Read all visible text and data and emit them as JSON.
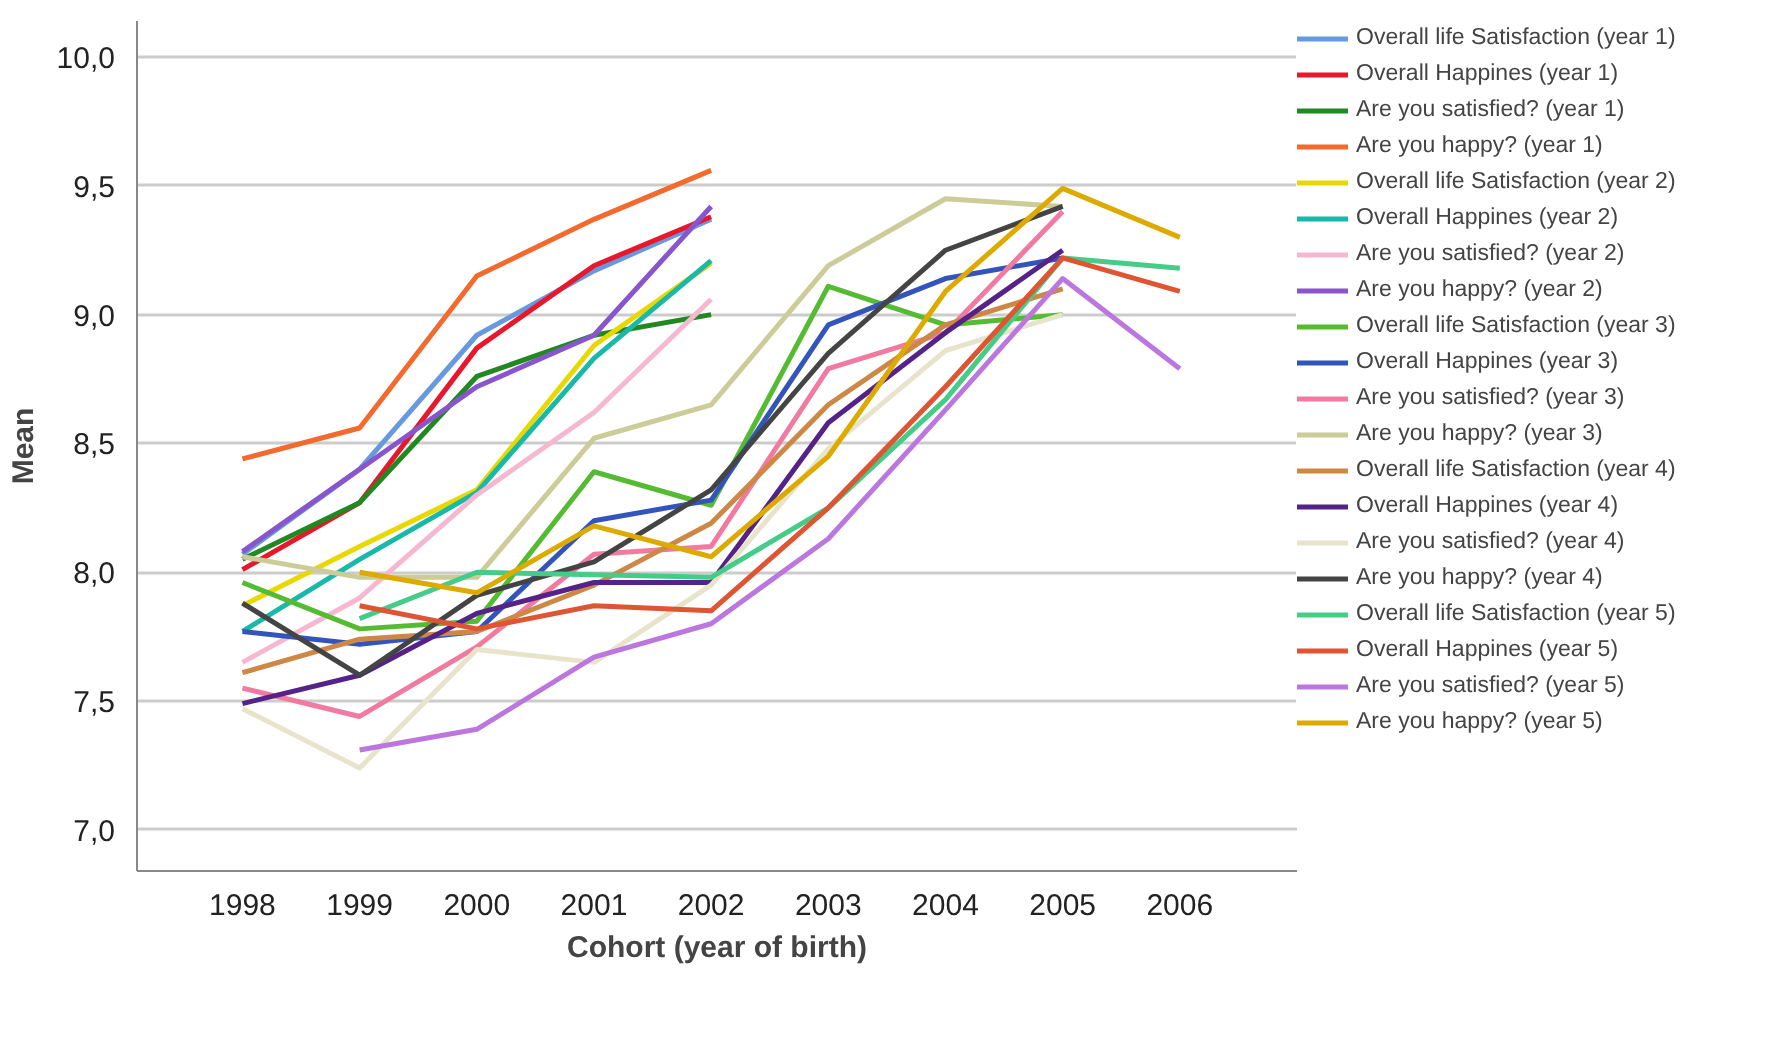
{
  "chart_data": {
    "type": "line",
    "xlabel": "Cohort (year of birth)",
    "ylabel": "Mean",
    "xlim": [
      1997.1,
      2007
    ],
    "xticks": [
      1998,
      1999,
      2000,
      2001,
      2002,
      2003,
      2004,
      2005,
      2006
    ],
    "ylim": [
      6.84,
      10.14
    ],
    "yticks": [
      {
        "value": 7.0,
        "label": "7,0"
      },
      {
        "value": 7.5,
        "label": "7,5"
      },
      {
        "value": 8.0,
        "label": "8,0"
      },
      {
        "value": 8.5,
        "label": "8,5"
      },
      {
        "value": 9.0,
        "label": "9,0"
      },
      {
        "value": 9.5,
        "label": "9,5"
      },
      {
        "value": 10.0,
        "label": "10,0"
      }
    ],
    "grid": "y",
    "legend": "right",
    "marker": "none",
    "line_style": "solid",
    "series": [
      {
        "name": "Overall life Satisfaction (year 1)",
        "color": "#6699dd",
        "x": [
          1998,
          1999,
          2000,
          2001,
          2002
        ],
        "values": [
          8.07,
          8.4,
          8.92,
          9.17,
          9.37
        ]
      },
      {
        "name": "Overall Happines (year 1)",
        "color": "#e8182c",
        "x": [
          1998,
          1999,
          2000,
          2001,
          2002
        ],
        "values": [
          8.01,
          8.27,
          8.87,
          9.19,
          9.38
        ]
      },
      {
        "name": "Are you satisfied? (year 1)",
        "color": "#228822",
        "x": [
          1998,
          1999,
          2000,
          2001,
          2002
        ],
        "values": [
          8.05,
          8.27,
          8.76,
          8.92,
          9.0
        ]
      },
      {
        "name": "Are you happy? (year 1)",
        "color": "#f26a2e",
        "x": [
          1998,
          1999,
          2000,
          2001,
          2002
        ],
        "values": [
          8.44,
          8.56,
          9.15,
          9.37,
          9.56
        ]
      },
      {
        "name": "Overall life Satisfaction (year 2)",
        "color": "#e8d800",
        "x": [
          1998,
          1999,
          2000,
          2001,
          2002
        ],
        "values": [
          7.87,
          8.1,
          8.32,
          8.88,
          9.2
        ]
      },
      {
        "name": "Overall Happines (year 2)",
        "color": "#1ab8a8",
        "x": [
          1998,
          1999,
          2000,
          2001,
          2002
        ],
        "values": [
          7.77,
          8.05,
          8.31,
          8.83,
          9.21
        ]
      },
      {
        "name": "Are you satisfied? (year 2)",
        "color": "#f5b8d0",
        "x": [
          1998,
          1999,
          2000,
          2001,
          2002
        ],
        "values": [
          7.65,
          7.9,
          8.3,
          8.62,
          9.06
        ]
      },
      {
        "name": "Are you happy? (year 2)",
        "color": "#8855cc",
        "x": [
          1998,
          1999,
          2000,
          2001,
          2002
        ],
        "values": [
          8.08,
          8.4,
          8.72,
          8.92,
          9.42
        ]
      },
      {
        "name": "Overall life Satisfaction (year 3)",
        "color": "#55bb33",
        "x": [
          1998,
          1999,
          2000,
          2001,
          2002,
          2003,
          2004,
          2005
        ],
        "values": [
          7.96,
          7.78,
          7.81,
          8.39,
          8.26,
          9.11,
          8.96,
          9.0
        ]
      },
      {
        "name": "Overall Happines (year 3)",
        "color": "#3355bb",
        "x": [
          1998,
          1999,
          2000,
          2001,
          2002,
          2003,
          2004,
          2005
        ],
        "values": [
          7.77,
          7.72,
          7.77,
          8.2,
          8.28,
          8.96,
          9.14,
          9.22
        ]
      },
      {
        "name": "Are you satisfied? (year 3)",
        "color": "#f07aa0",
        "x": [
          1998,
          1999,
          2000,
          2001,
          2002,
          2003,
          2004,
          2005
        ],
        "values": [
          7.55,
          7.44,
          7.71,
          8.07,
          8.1,
          8.79,
          8.93,
          9.4
        ]
      },
      {
        "name": "Are you happy? (year 3)",
        "color": "#cccc99",
        "x": [
          1998,
          1999,
          2000,
          2001,
          2002,
          2003,
          2004,
          2005
        ],
        "values": [
          8.06,
          7.98,
          7.98,
          8.52,
          8.65,
          9.19,
          9.45,
          9.42
        ]
      },
      {
        "name": "Overall life Satisfaction (year 4)",
        "color": "#cc8844",
        "x": [
          1998,
          1999,
          2000,
          2001,
          2002,
          2003,
          2004,
          2005
        ],
        "values": [
          7.61,
          7.74,
          7.77,
          7.95,
          8.19,
          8.65,
          8.96,
          9.1
        ]
      },
      {
        "name": "Overall Happines (year 4)",
        "color": "#552288",
        "x": [
          1998,
          1999,
          2000,
          2001,
          2002,
          2003,
          2004,
          2005
        ],
        "values": [
          7.49,
          7.6,
          7.84,
          7.96,
          7.96,
          8.58,
          8.93,
          9.25
        ]
      },
      {
        "name": "Are you satisfied? (year 4)",
        "color": "#e8e4cc",
        "x": [
          1998,
          1999,
          2000,
          2001,
          2002,
          2003,
          2004,
          2005
        ],
        "values": [
          7.47,
          7.24,
          7.7,
          7.65,
          7.95,
          8.48,
          8.86,
          9.0
        ]
      },
      {
        "name": "Are you happy? (year 4)",
        "color": "#444444",
        "x": [
          1998,
          1999,
          2000,
          2001,
          2002,
          2003,
          2004,
          2005
        ],
        "values": [
          7.88,
          7.6,
          7.91,
          8.04,
          8.32,
          8.85,
          9.25,
          9.42
        ]
      },
      {
        "name": "Overall life Satisfaction (year 5)",
        "color": "#44cc88",
        "x": [
          1999,
          2000,
          2001,
          2002,
          2003,
          2004,
          2005,
          2006
        ],
        "values": [
          7.82,
          8.0,
          7.99,
          7.98,
          8.25,
          8.67,
          9.22,
          9.18
        ]
      },
      {
        "name": "Overall Happines (year 5)",
        "color": "#dd5533",
        "x": [
          1999,
          2000,
          2001,
          2002,
          2003,
          2004,
          2005,
          2006
        ],
        "values": [
          7.87,
          7.78,
          7.87,
          7.85,
          8.25,
          8.72,
          9.22,
          9.09
        ]
      },
      {
        "name": "Are you satisfied? (year 5)",
        "color": "#bb77dd",
        "x": [
          1999,
          2000,
          2001,
          2002,
          2003,
          2004,
          2005,
          2006
        ],
        "values": [
          7.31,
          7.39,
          7.67,
          7.8,
          8.13,
          8.63,
          9.14,
          8.79
        ]
      },
      {
        "name": "Are you happy? (year 5)",
        "color": "#ddaa00",
        "x": [
          1999,
          2000,
          2001,
          2002,
          2003,
          2004,
          2005,
          2006
        ],
        "values": [
          8.0,
          7.92,
          8.18,
          8.06,
          8.45,
          9.09,
          9.49,
          9.3
        ]
      }
    ]
  }
}
